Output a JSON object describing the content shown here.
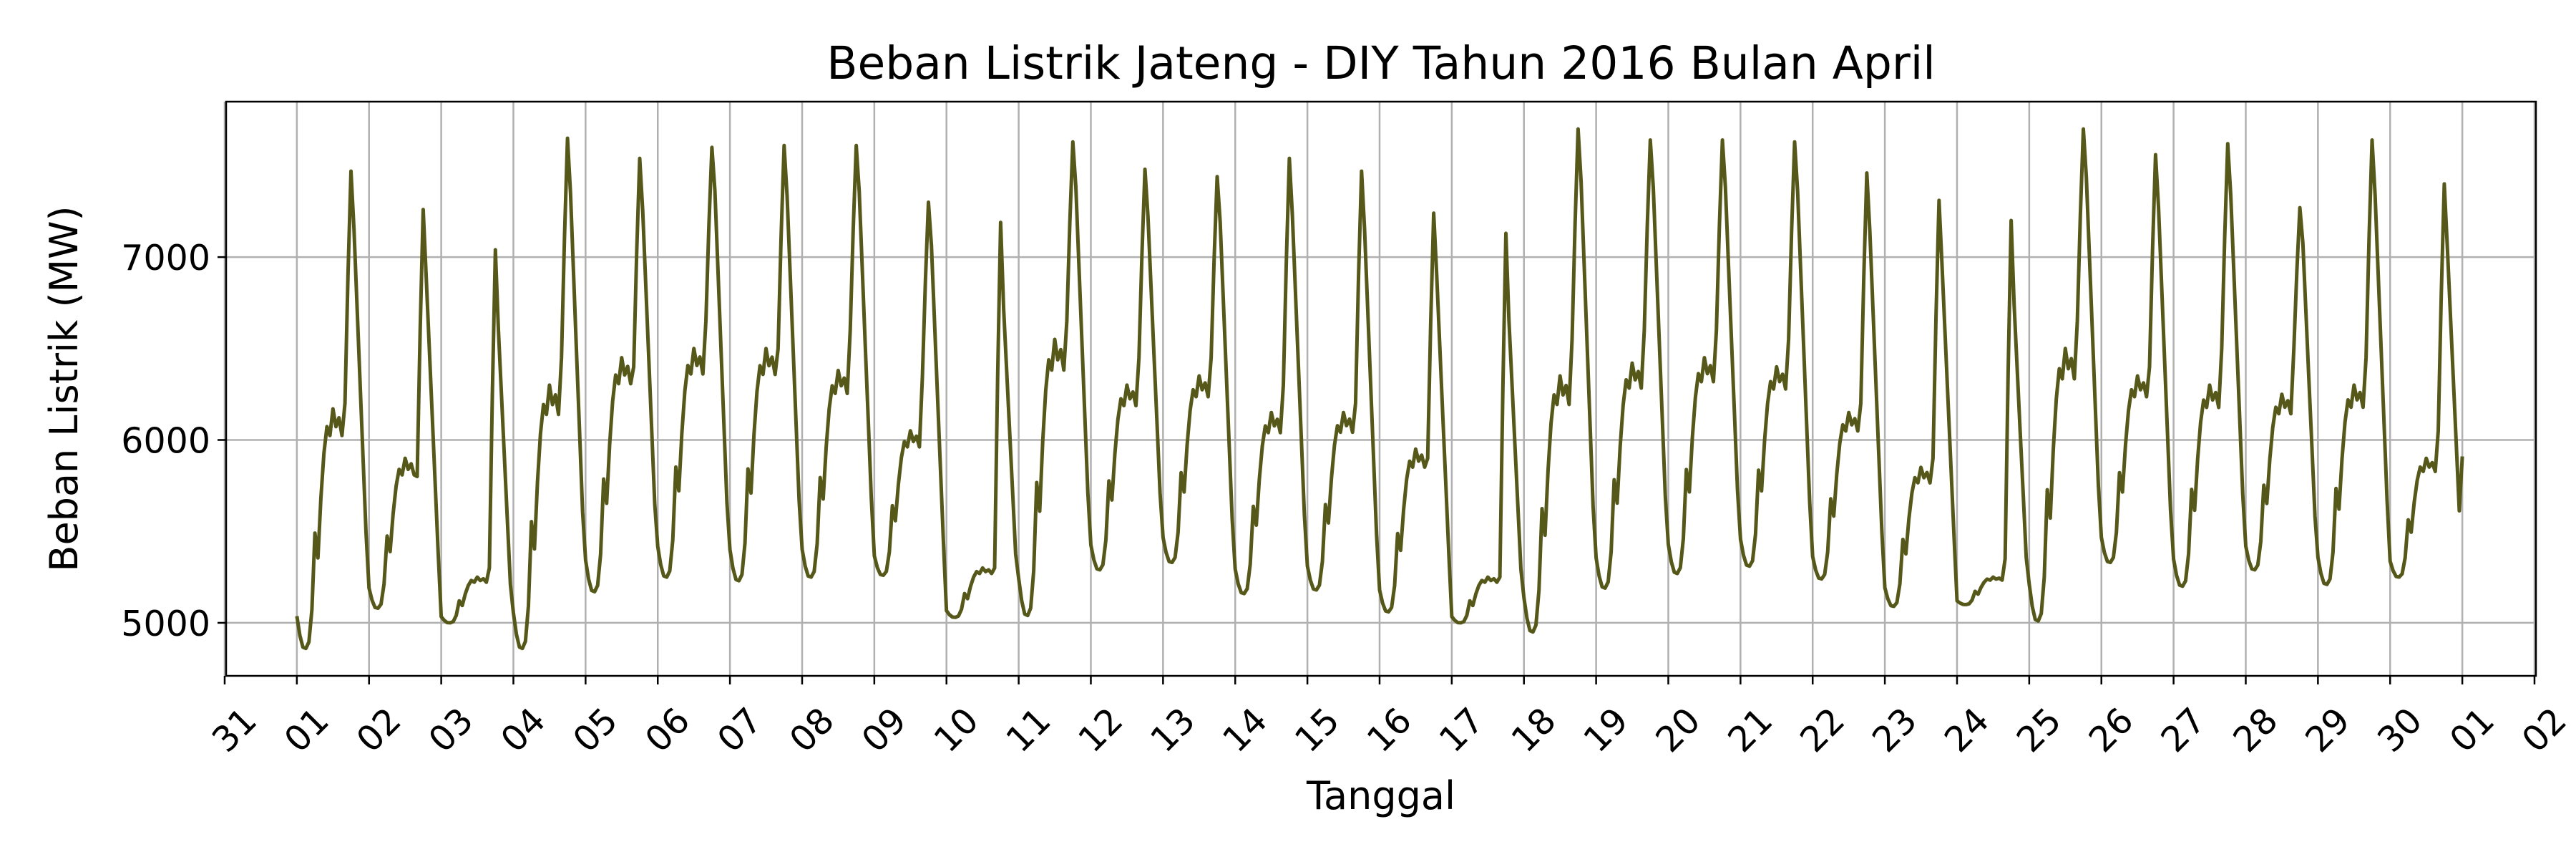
{
  "chart_data": {
    "type": "line",
    "title": "Beban Listrik Jateng - DIY Tahun 2016 Bulan April",
    "xlabel": "Tanggal",
    "ylabel": "Beban Listrik (MW)",
    "x_start": "2016-04-01 00:00",
    "x_interval_hours": 1,
    "xlim": [
      "2016-03-31",
      "2016-05-02"
    ],
    "ylim": [
      4710,
      7850
    ],
    "x_tick_labels": [
      "31",
      "01",
      "02",
      "03",
      "04",
      "05",
      "06",
      "07",
      "08",
      "09",
      "10",
      "11",
      "12",
      "13",
      "14",
      "15",
      "16",
      "17",
      "18",
      "19",
      "20",
      "21",
      "22",
      "23",
      "24",
      "25",
      "26",
      "27",
      "28",
      "29",
      "30",
      "01",
      "02"
    ],
    "y_ticks": [
      5000,
      6000,
      7000
    ],
    "grid": true,
    "legend": "none",
    "colors": {
      "line": "#56581a",
      "grid": "#b0b0b0"
    },
    "daily_profile": {
      "hours": [
        0,
        1,
        2,
        3,
        4,
        5,
        6,
        7,
        8,
        9,
        10,
        11,
        12,
        13,
        14,
        15,
        16,
        17,
        18,
        19,
        20,
        21,
        22,
        23
      ],
      "values": [
        5300,
        5150,
        5060,
        5050,
        5100,
        5350,
        5700,
        5560,
        5900,
        6150,
        6300,
        6250,
        6400,
        6300,
        6350,
        6250,
        6500,
        7150,
        7500,
        7400,
        6900,
        6400,
        5950,
        5550
      ]
    },
    "daily_peaks": [
      7470,
      7260,
      7040,
      7650,
      7540,
      7600,
      7610,
      7610,
      7300,
      7190,
      7630,
      7480,
      7440,
      7540,
      7470,
      7240,
      7130,
      7700,
      7640,
      7640,
      7630,
      7460,
      7310,
      7200,
      7700,
      7560,
      7620,
      7270,
      7640,
      7400
    ],
    "daily_mins": [
      4860,
      5080,
      5000,
      4860,
      5170,
      5250,
      5230,
      5250,
      5260,
      5030,
      5040,
      5290,
      5330,
      5160,
      5180,
      5060,
      5000,
      4950,
      5190,
      5270,
      5310,
      5240,
      5090,
      5100,
      5010,
      5330,
      5200,
      5290,
      5210,
      5250
    ],
    "daily_midday": [
      6170,
      5900,
      5250,
      6300,
      6450,
      6500,
      6500,
      6380,
      6050,
      5300,
      6550,
      6300,
      6350,
      6150,
      6150,
      5950,
      5250,
      6350,
      6420,
      6450,
      6400,
      6150,
      5850,
      5250,
      6500,
      6350,
      6300,
      6250,
      6300,
      5900
    ],
    "daily_evening_ramp": [
      6200,
      5800,
      5300,
      6450,
      6400,
      6650,
      6500,
      6600,
      6350,
      5300,
      6650,
      6450,
      6450,
      6300,
      6200,
      5900,
      5250,
      6550,
      6600,
      6600,
      6550,
      6200,
      5900,
      5350,
      6650,
      6400,
      6500,
      6500,
      6450,
      6050
    ],
    "end_value": 5910
  }
}
